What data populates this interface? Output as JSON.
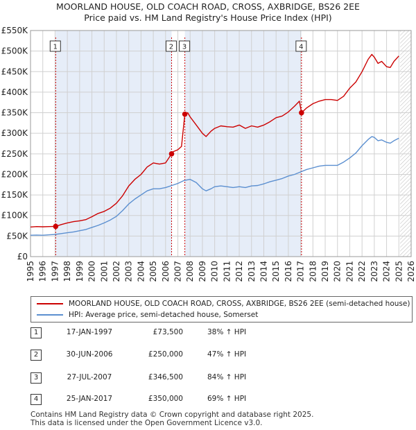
{
  "title_line1": "MOORLAND HOUSE, OLD COACH ROAD, CROSS, AXBRIDGE, BS26 2EE",
  "title_line2": "Price paid vs. HM Land Registry's House Price Index (HPI)",
  "legend": {
    "property_label": "MOORLAND HOUSE, OLD COACH ROAD, CROSS, AXBRIDGE, BS26 2EE (semi-detached house)",
    "hpi_label": "HPI: Average price, semi-detached house, Somerset"
  },
  "colors": {
    "property": "#cc0000",
    "hpi": "#5b8fd0",
    "shade": "#e6edf8",
    "grid": "#d0d0d0"
  },
  "transactions": [
    {
      "num": "1",
      "date": "17-JAN-1997",
      "price": "£73,500",
      "hpi": "38% ↑ HPI"
    },
    {
      "num": "2",
      "date": "30-JUN-2006",
      "price": "£250,000",
      "hpi": "47% ↑ HPI"
    },
    {
      "num": "3",
      "date": "27-JUL-2007",
      "price": "£346,500",
      "hpi": "84% ↑ HPI"
    },
    {
      "num": "4",
      "date": "25-JAN-2017",
      "price": "£350,000",
      "hpi": "69% ↑ HPI"
    }
  ],
  "footer": {
    "line1": "Contains HM Land Registry data © Crown copyright and database right 2025.",
    "line2": "This data is licensed under the Open Government Licence v3.0."
  },
  "chart_data": {
    "type": "line",
    "title": "MOORLAND HOUSE, OLD COACH ROAD, CROSS, AXBRIDGE, BS26 2EE — Price paid vs. HM Land Registry's House Price Index (HPI)",
    "xlabel": "",
    "ylabel": "",
    "xlim": [
      1995,
      2026
    ],
    "ylim": [
      0,
      550000
    ],
    "x_ticks": [
      1995,
      1996,
      1997,
      1998,
      1999,
      2000,
      2001,
      2002,
      2003,
      2004,
      2005,
      2006,
      2007,
      2008,
      2009,
      2010,
      2011,
      2012,
      2013,
      2014,
      2015,
      2016,
      2017,
      2018,
      2019,
      2020,
      2021,
      2022,
      2023,
      2024,
      2025,
      2026
    ],
    "y_ticks": [
      0,
      50000,
      100000,
      150000,
      200000,
      250000,
      300000,
      350000,
      400000,
      450000,
      500000,
      550000
    ],
    "y_tick_labels": [
      "£0",
      "£50K",
      "£100K",
      "£150K",
      "£200K",
      "£250K",
      "£300K",
      "£350K",
      "£400K",
      "£450K",
      "£500K",
      "£550K"
    ],
    "grid": true,
    "future_hatch_from": 2025.1,
    "series": [
      {
        "name": "MOORLAND HOUSE, OLD COACH ROAD, CROSS, AXBRIDGE, BS26 2EE (semi-detached house)",
        "x": [
          1995.0,
          1995.5,
          1996.0,
          1996.5,
          1997.05,
          1997.5,
          1998.0,
          1998.5,
          1999.0,
          1999.5,
          2000.0,
          2000.5,
          2001.0,
          2001.5,
          2002.0,
          2002.5,
          2003.0,
          2003.5,
          2004.0,
          2004.5,
          2005.0,
          2005.5,
          2006.0,
          2006.49,
          2006.6,
          2007.0,
          2007.3,
          2007.57,
          2007.8,
          2008.0,
          2008.5,
          2009.0,
          2009.3,
          2009.7,
          2010.0,
          2010.5,
          2011.0,
          2011.5,
          2012.0,
          2012.5,
          2013.0,
          2013.5,
          2014.0,
          2014.5,
          2015.0,
          2015.5,
          2016.0,
          2016.5,
          2016.9,
          2017.07,
          2017.5,
          2018.0,
          2018.5,
          2019.0,
          2019.5,
          2020.0,
          2020.5,
          2021.0,
          2021.5,
          2022.0,
          2022.5,
          2022.8,
          2023.0,
          2023.3,
          2023.6,
          2024.0,
          2024.3,
          2024.6,
          2025.0
        ],
        "values": [
          72000,
          73000,
          72500,
          73000,
          73500,
          78000,
          82000,
          85000,
          87000,
          90000,
          97000,
          105000,
          110000,
          118000,
          130000,
          148000,
          172000,
          188000,
          200000,
          218000,
          228000,
          225000,
          228000,
          250000,
          255000,
          260000,
          268000,
          346500,
          350000,
          340000,
          320000,
          300000,
          292000,
          305000,
          312000,
          318000,
          316000,
          315000,
          320000,
          312000,
          318000,
          315000,
          320000,
          328000,
          338000,
          342000,
          352000,
          366000,
          378000,
          350000,
          362000,
          372000,
          378000,
          382000,
          382000,
          380000,
          390000,
          410000,
          425000,
          450000,
          480000,
          492000,
          485000,
          470000,
          475000,
          462000,
          460000,
          475000,
          488000
        ]
      },
      {
        "name": "HPI: Average price, semi-detached house, Somerset",
        "x": [
          1995.0,
          1995.5,
          1996.0,
          1996.5,
          1997.0,
          1997.5,
          1998.0,
          1998.5,
          1999.0,
          1999.5,
          2000.0,
          2000.5,
          2001.0,
          2001.5,
          2002.0,
          2002.5,
          2003.0,
          2003.5,
          2004.0,
          2004.5,
          2005.0,
          2005.5,
          2006.0,
          2006.5,
          2007.0,
          2007.5,
          2008.0,
          2008.5,
          2009.0,
          2009.3,
          2009.7,
          2010.0,
          2010.5,
          2011.0,
          2011.5,
          2012.0,
          2012.5,
          2013.0,
          2013.5,
          2014.0,
          2014.5,
          2015.0,
          2015.5,
          2016.0,
          2016.5,
          2017.0,
          2017.5,
          2018.0,
          2018.5,
          2019.0,
          2019.5,
          2020.0,
          2020.5,
          2021.0,
          2021.5,
          2022.0,
          2022.5,
          2022.8,
          2023.0,
          2023.3,
          2023.6,
          2024.0,
          2024.3,
          2024.6,
          2025.0
        ],
        "values": [
          52000,
          52500,
          52000,
          53000,
          54000,
          56000,
          58000,
          60000,
          63000,
          66000,
          71000,
          76000,
          82000,
          89000,
          98000,
          112000,
          128000,
          140000,
          150000,
          160000,
          165000,
          165000,
          168000,
          173000,
          178000,
          185000,
          188000,
          180000,
          165000,
          160000,
          165000,
          170000,
          172000,
          170000,
          168000,
          170000,
          168000,
          172000,
          173000,
          177000,
          182000,
          186000,
          190000,
          196000,
          200000,
          206000,
          212000,
          216000,
          220000,
          222000,
          222000,
          222000,
          230000,
          240000,
          252000,
          270000,
          285000,
          292000,
          290000,
          282000,
          284000,
          278000,
          276000,
          282000,
          288000
        ]
      }
    ],
    "markers": [
      {
        "label": "1",
        "x": 1997.05,
        "y": 73500
      },
      {
        "label": "2",
        "x": 2006.49,
        "y": 250000
      },
      {
        "label": "3",
        "x": 2007.57,
        "y": 346500
      },
      {
        "label": "4",
        "x": 2017.07,
        "y": 350000
      }
    ],
    "shaded_spans": [
      [
        1997.05,
        2006.49
      ],
      [
        2007.57,
        2017.07
      ]
    ]
  }
}
